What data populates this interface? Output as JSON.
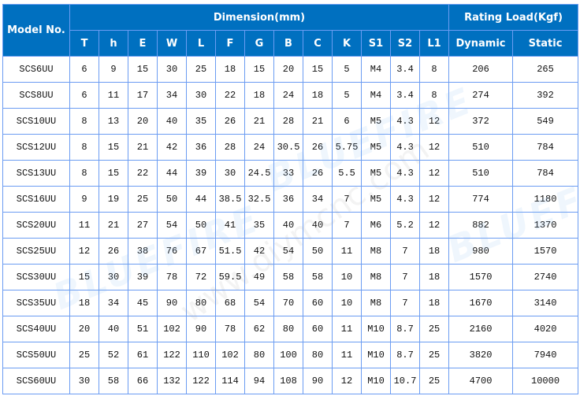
{
  "header": {
    "model": "Model No.",
    "dimension": "Dimension(mm)",
    "rating": "Rating Load(Kgf)",
    "columns": [
      "T",
      "h",
      "E",
      "W",
      "L",
      "F",
      "G",
      "B",
      "C",
      "K",
      "S1",
      "S2",
      "L1",
      "Dynamic",
      "Static"
    ]
  },
  "rows": [
    [
      "SCS6UU",
      "6",
      "9",
      "15",
      "30",
      "25",
      "18",
      "15",
      "20",
      "15",
      "5",
      "M4",
      "3.4",
      "8",
      "206",
      "265"
    ],
    [
      "SCS8UU",
      "6",
      "11",
      "17",
      "34",
      "30",
      "22",
      "18",
      "24",
      "18",
      "5",
      "M4",
      "3.4",
      "8",
      "274",
      "392"
    ],
    [
      "SCS10UU",
      "8",
      "13",
      "20",
      "40",
      "35",
      "26",
      "21",
      "28",
      "21",
      "6",
      "M5",
      "4.3",
      "12",
      "372",
      "549"
    ],
    [
      "SCS12UU",
      "8",
      "15",
      "21",
      "42",
      "36",
      "28",
      "24",
      "30.5",
      "26",
      "5.75",
      "M5",
      "4.3",
      "12",
      "510",
      "784"
    ],
    [
      "SCS13UU",
      "8",
      "15",
      "22",
      "44",
      "39",
      "30",
      "24.5",
      "33",
      "26",
      "5.5",
      "M5",
      "4.3",
      "12",
      "510",
      "784"
    ],
    [
      "SCS16UU",
      "9",
      "19",
      "25",
      "50",
      "44",
      "38.5",
      "32.5",
      "36",
      "34",
      "7",
      "M5",
      "4.3",
      "12",
      "774",
      "1180"
    ],
    [
      "SCS20UU",
      "11",
      "21",
      "27",
      "54",
      "50",
      "41",
      "35",
      "40",
      "40",
      "7",
      "M6",
      "5.2",
      "12",
      "882",
      "1370"
    ],
    [
      "SCS25UU",
      "12",
      "26",
      "38",
      "76",
      "67",
      "51.5",
      "42",
      "54",
      "50",
      "11",
      "M8",
      "7",
      "18",
      "980",
      "1570"
    ],
    [
      "SCS30UU",
      "15",
      "30",
      "39",
      "78",
      "72",
      "59.5",
      "49",
      "58",
      "58",
      "10",
      "M8",
      "7",
      "18",
      "1570",
      "2740"
    ],
    [
      "SCS35UU",
      "18",
      "34",
      "45",
      "90",
      "80",
      "68",
      "54",
      "70",
      "60",
      "10",
      "M8",
      "7",
      "18",
      "1670",
      "3140"
    ],
    [
      "SCS40UU",
      "20",
      "40",
      "51",
      "102",
      "90",
      "78",
      "62",
      "80",
      "60",
      "11",
      "M10",
      "8.7",
      "25",
      "2160",
      "4020"
    ],
    [
      "SCS50UU",
      "25",
      "52",
      "61",
      "122",
      "110",
      "102",
      "80",
      "100",
      "80",
      "11",
      "M10",
      "8.7",
      "25",
      "3820",
      "7940"
    ],
    [
      "SCS60UU",
      "30",
      "58",
      "66",
      "132",
      "122",
      "114",
      "94",
      "108",
      "90",
      "12",
      "M10",
      "10.7",
      "25",
      "4700",
      "10000"
    ]
  ],
  "watermark": {
    "brand": "BLUEFIRE",
    "site": "www.diymcnc.com"
  },
  "colors": {
    "header_bg": "#0070c0",
    "border": "#6b9cf2"
  }
}
